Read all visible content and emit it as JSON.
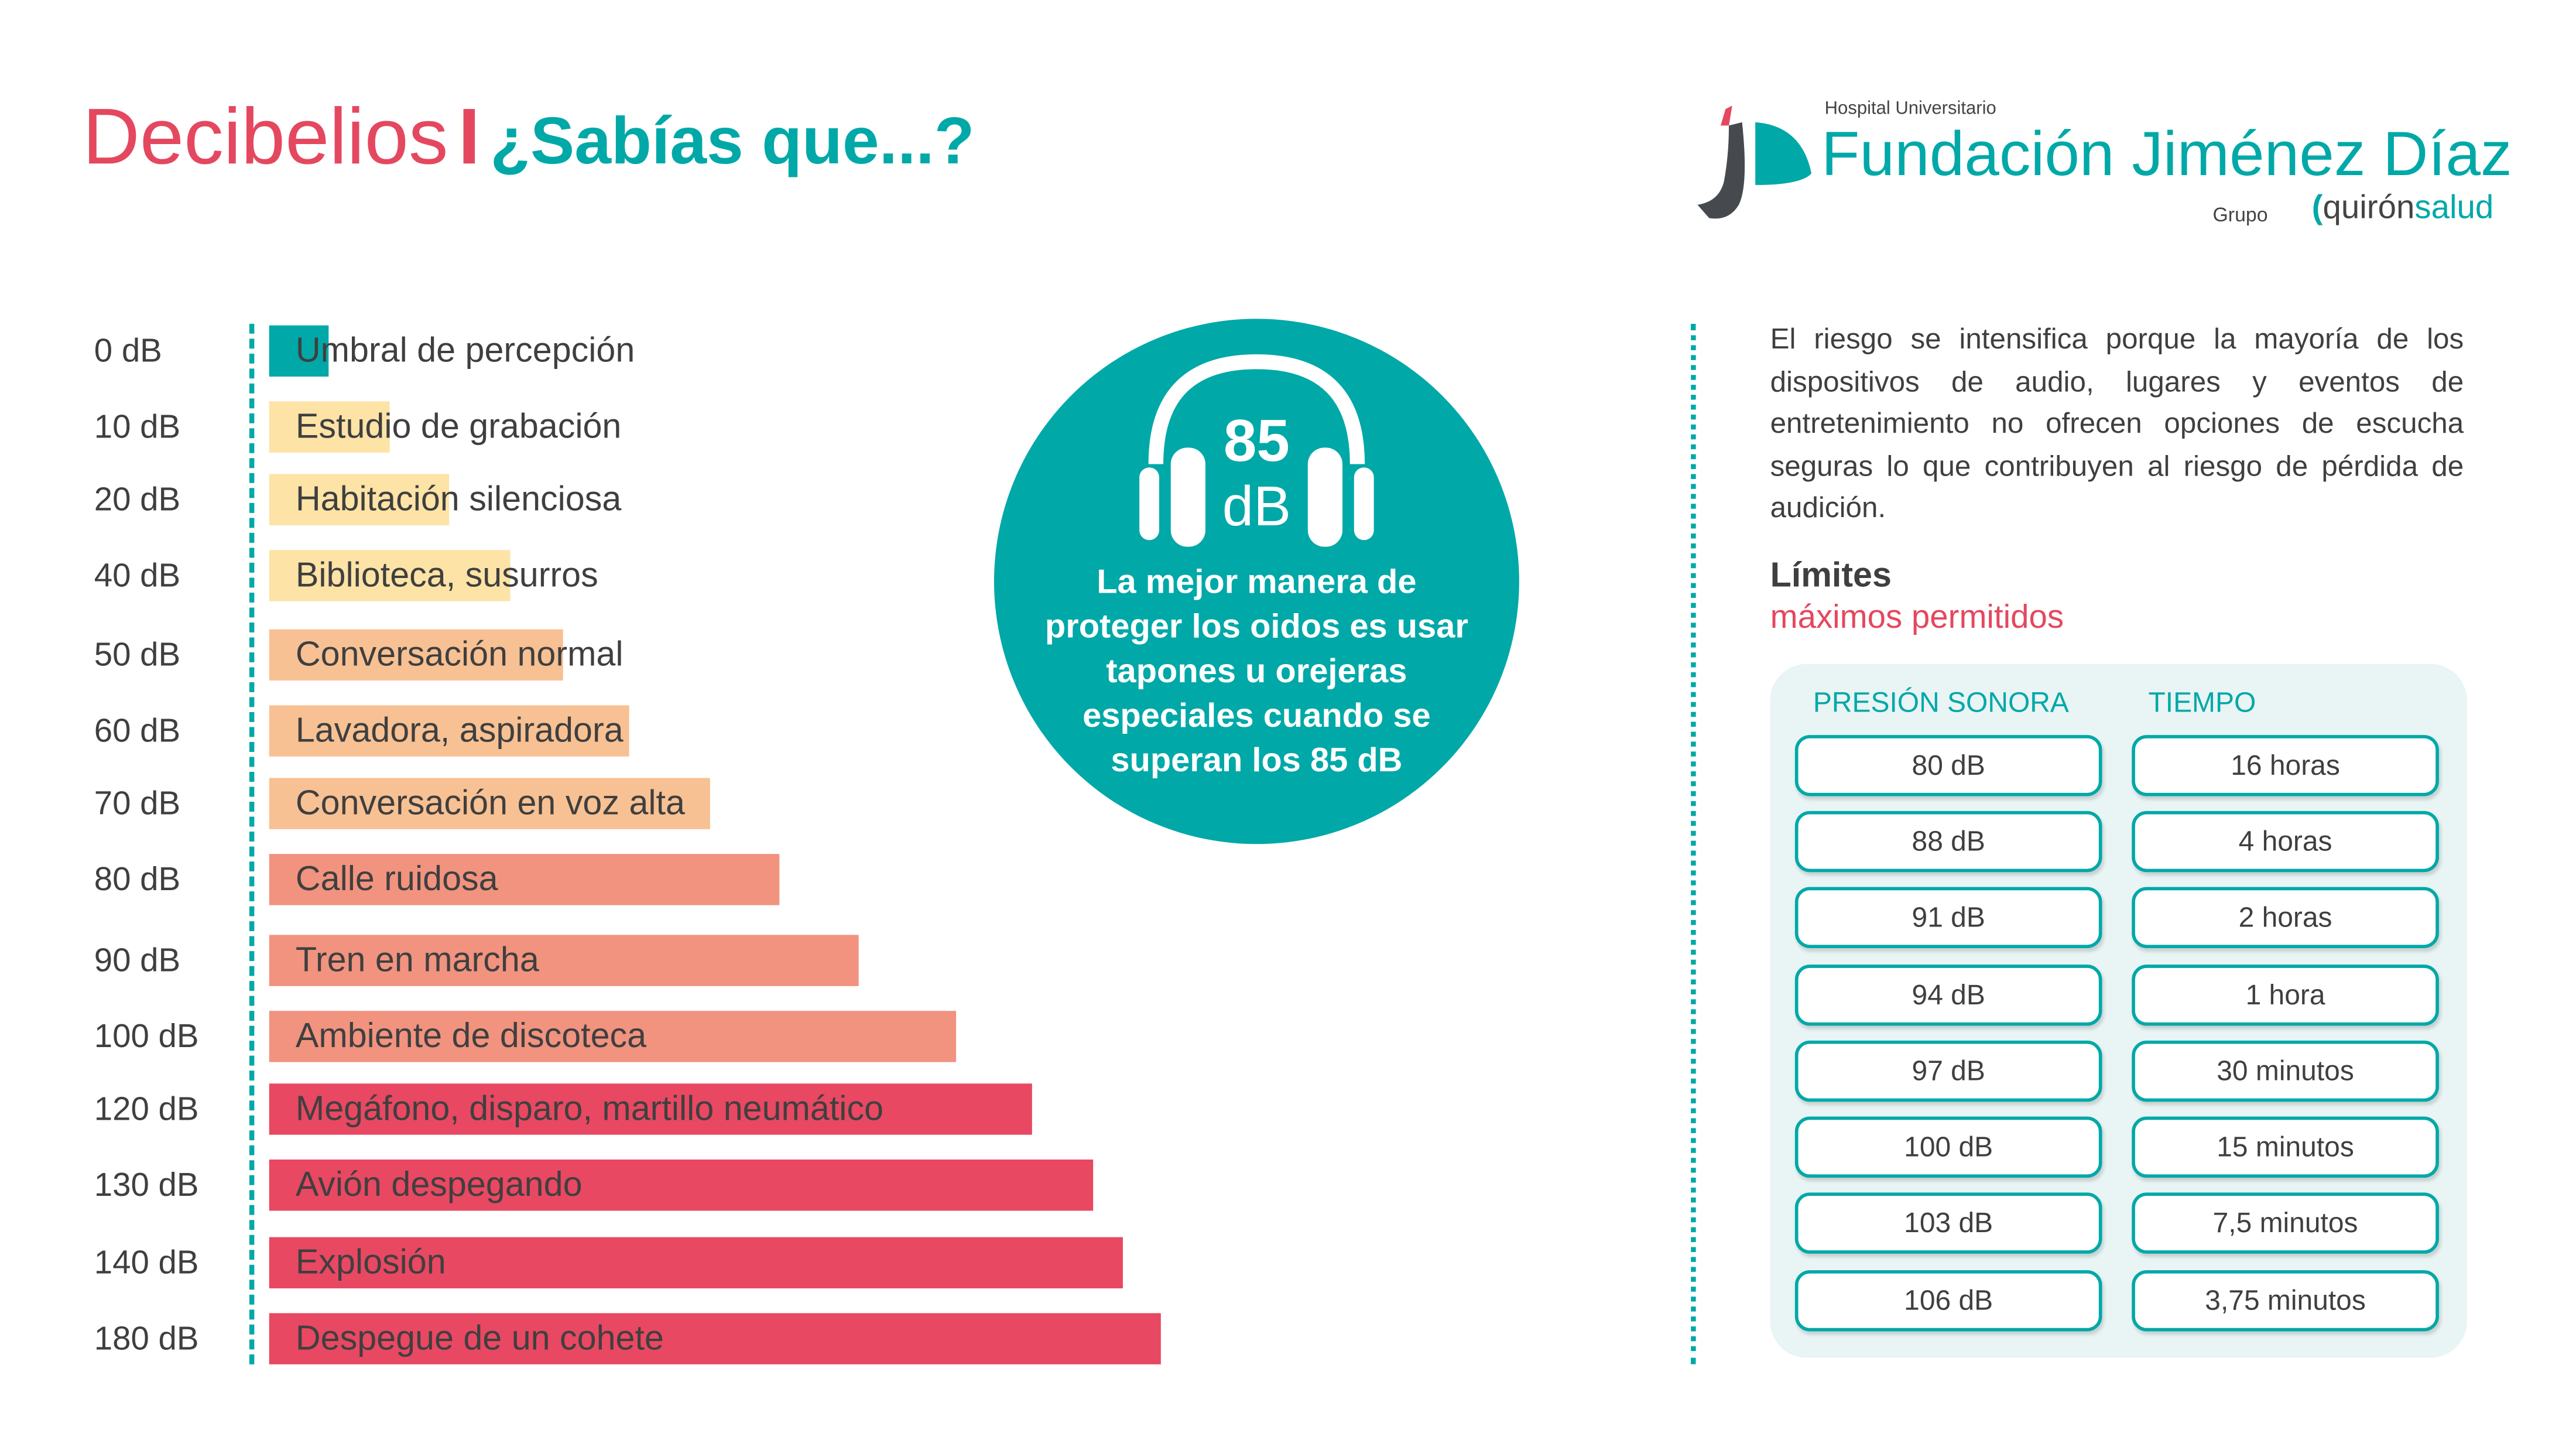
{
  "header": {
    "title": "Decibelios",
    "separator": "I",
    "subtitle": "¿Sabías que...?"
  },
  "logo": {
    "hospital": "Hospital Universitario",
    "name": "Fundación Jiménez Díaz",
    "grupo": "Grupo",
    "brand_a": "quirón",
    "brand_b": "salud"
  },
  "colors": {
    "teal": "#00a8a8",
    "pink": "#e4485f",
    "yellow": "#fde3a6",
    "orange": "#f8c193",
    "salmon": "#f1937f",
    "red": "#e84862"
  },
  "scale": [
    {
      "db": "0 dB",
      "label": "Umbral de percepción",
      "color": "#00a8a8"
    },
    {
      "db": "10 dB",
      "label": "Estudio de grabación",
      "color": "#fde3a6"
    },
    {
      "db": "20 dB",
      "label": "Habitación silenciosa",
      "color": "#fde3a6"
    },
    {
      "db": "40 dB",
      "label": "Biblioteca, susurros",
      "color": "#fde3a6"
    },
    {
      "db": "50 dB",
      "label": "Conversación normal",
      "color": "#f8c193"
    },
    {
      "db": "60 dB",
      "label": "Lavadora, aspiradora",
      "color": "#f8c193"
    },
    {
      "db": "70 dB",
      "label": "Conversación en voz alta",
      "color": "#f8c193"
    },
    {
      "db": "80 dB",
      "label": "Calle ruidosa",
      "color": "#f1937f"
    },
    {
      "db": "90 dB",
      "label": "Tren en marcha",
      "color": "#f1937f"
    },
    {
      "db": "100 dB",
      "label": "Ambiente de discoteca",
      "color": "#f1937f"
    },
    {
      "db": "120 dB",
      "label": "Megáfono, disparo, martillo neumático",
      "color": "#e84862"
    },
    {
      "db": "130 dB",
      "label": "Avión despegando",
      "color": "#e84862"
    },
    {
      "db": "140 dB",
      "label": "Explosión",
      "color": "#e84862"
    },
    {
      "db": "180 dB",
      "label": "Despegue de un cohete",
      "color": "#e84862"
    }
  ],
  "circle": {
    "icon": "headphones-icon",
    "value": "85",
    "unit": "dB",
    "message": "La mejor manera de proteger los oidos es usar tapones u orejeras especiales cuando se superan los 85 dB"
  },
  "info": {
    "paragraph": "El riesgo se intensifica porque la mayoría de los dispositivos de audio, lugares y eventos de entretenimiento no ofrecen opciones de escucha seguras lo que contribuyen al riesgo de pérdida de audición.",
    "limits_title": "Límites",
    "limits_subtitle": "máximos permitidos"
  },
  "limits_table": {
    "headers": [
      "PRESIÓN SONORA",
      "TIEMPO"
    ],
    "rows": [
      [
        "80 dB",
        "16 horas"
      ],
      [
        "88 dB",
        "4 horas"
      ],
      [
        "91 dB",
        "2 horas"
      ],
      [
        "94 dB",
        "1 hora"
      ],
      [
        "97 dB",
        "30 minutos"
      ],
      [
        "100 dB",
        "15 minutos"
      ],
      [
        "103 dB",
        "7,5 minutos"
      ],
      [
        "106 dB",
        "3,75 minutos"
      ]
    ]
  }
}
